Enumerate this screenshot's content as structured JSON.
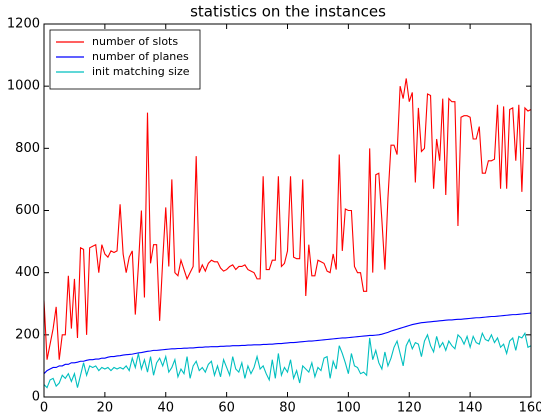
{
  "chart_data": {
    "type": "line",
    "title": "statistics on the instances",
    "x": [
      0,
      1,
      2,
      3,
      4,
      5,
      6,
      7,
      8,
      9,
      10,
      11,
      12,
      13,
      14,
      15,
      16,
      17,
      18,
      19,
      20,
      21,
      22,
      23,
      24,
      25,
      26,
      27,
      28,
      29,
      30,
      31,
      32,
      33,
      34,
      35,
      36,
      37,
      38,
      39,
      40,
      41,
      42,
      43,
      44,
      45,
      46,
      47,
      48,
      49,
      50,
      51,
      52,
      53,
      54,
      55,
      56,
      57,
      58,
      59,
      60,
      61,
      62,
      63,
      64,
      65,
      66,
      67,
      68,
      69,
      70,
      71,
      72,
      73,
      74,
      75,
      76,
      77,
      78,
      79,
      80,
      81,
      82,
      83,
      84,
      85,
      86,
      87,
      88,
      89,
      90,
      91,
      92,
      93,
      94,
      95,
      96,
      97,
      98,
      99,
      100,
      101,
      102,
      103,
      104,
      105,
      106,
      107,
      108,
      109,
      110,
      111,
      112,
      113,
      114,
      115,
      116,
      117,
      118,
      119,
      120,
      121,
      122,
      123,
      124,
      125,
      126,
      127,
      128,
      129,
      130,
      131,
      132,
      133,
      134,
      135,
      136,
      137,
      138,
      139,
      140,
      141,
      142,
      143,
      144,
      145,
      146,
      147,
      148,
      149,
      150,
      151,
      152,
      153,
      154,
      155,
      156,
      157,
      158,
      159,
      160
    ],
    "series": [
      {
        "name": "number of slots",
        "color": "#ff0000",
        "values": [
          310,
          120,
          170,
          220,
          290,
          120,
          200,
          200,
          390,
          220,
          380,
          190,
          480,
          475,
          200,
          480,
          485,
          490,
          400,
          490,
          460,
          450,
          470,
          465,
          470,
          620,
          460,
          400,
          450,
          470,
          265,
          420,
          600,
          320,
          915,
          430,
          490,
          490,
          245,
          440,
          610,
          420,
          700,
          400,
          390,
          440,
          410,
          380,
          400,
          420,
          775,
          400,
          425,
          405,
          430,
          440,
          435,
          435,
          415,
          405,
          410,
          420,
          425,
          410,
          420,
          420,
          425,
          410,
          405,
          400,
          380,
          380,
          710,
          410,
          410,
          440,
          440,
          710,
          420,
          430,
          470,
          710,
          450,
          445,
          445,
          700,
          325,
          490,
          390,
          390,
          440,
          435,
          430,
          405,
          400,
          460,
          410,
          780,
          470,
          605,
          600,
          600,
          420,
          400,
          400,
          340,
          340,
          800,
          400,
          715,
          720,
          570,
          410,
          640,
          810,
          810,
          780,
          1000,
          960,
          1025,
          950,
          980,
          690,
          930,
          790,
          800,
          975,
          970,
          670,
          830,
          760,
          960,
          650,
          960,
          950,
          950,
          550,
          900,
          905,
          905,
          900,
          830,
          830,
          870,
          720,
          720,
          760,
          760,
          765,
          940,
          670,
          935,
          670,
          925,
          930,
          760,
          940,
          660,
          930,
          920,
          925
        ]
      },
      {
        "name": "number of planes",
        "color": "#0000ff",
        "values": [
          75,
          85,
          90,
          95,
          95,
          100,
          100,
          105,
          105,
          110,
          110,
          112,
          115,
          115,
          118,
          120,
          120,
          122,
          122,
          125,
          125,
          128,
          130,
          130,
          132,
          133,
          135,
          136,
          137,
          138,
          140,
          142,
          143,
          145,
          147,
          148,
          150,
          150,
          151,
          152,
          153,
          154,
          155,
          155,
          156,
          156,
          157,
          157,
          158,
          158,
          159,
          160,
          160,
          161,
          161,
          162,
          162,
          162,
          163,
          163,
          164,
          164,
          165,
          165,
          165,
          166,
          166,
          167,
          167,
          168,
          168,
          168,
          169,
          169,
          170,
          170,
          171,
          172,
          172,
          173,
          174,
          175,
          175,
          176,
          177,
          178,
          179,
          180,
          180,
          181,
          182,
          183,
          184,
          185,
          186,
          187,
          188,
          189,
          190,
          190,
          191,
          192,
          193,
          194,
          195,
          196,
          197,
          198,
          198,
          199,
          200,
          202,
          205,
          208,
          212,
          215,
          218,
          221,
          224,
          227,
          230,
          233,
          235,
          237,
          239,
          240,
          241,
          242,
          243,
          244,
          245,
          246,
          247,
          248,
          248,
          249,
          250,
          250,
          251,
          252,
          253,
          254,
          255,
          255,
          256,
          257,
          258,
          259,
          259,
          260,
          261,
          262,
          263,
          264,
          265,
          265,
          266,
          267,
          268,
          269,
          270
        ]
      },
      {
        "name": "init matching size",
        "color": "#00bfbf",
        "values": [
          40,
          30,
          55,
          60,
          35,
          45,
          70,
          60,
          75,
          50,
          75,
          30,
          70,
          110,
          70,
          100,
          95,
          100,
          85,
          95,
          90,
          95,
          85,
          95,
          90,
          95,
          90,
          100,
          85,
          125,
          95,
          140,
          90,
          120,
          80,
          130,
          70,
          110,
          125,
          100,
          130,
          80,
          95,
          120,
          65,
          90,
          75,
          130,
          60,
          100,
          115,
          85,
          95,
          80,
          105,
          115,
          70,
          100,
          65,
          120,
          95,
          70,
          130,
          90,
          80,
          110,
          60,
          100,
          75,
          95,
          130,
          90,
          100,
          75,
          55,
          120,
          60,
          140,
          70,
          95,
          80,
          120,
          60,
          85,
          45,
          100,
          90,
          80,
          110,
          65,
          95,
          85,
          125,
          130,
          60,
          115,
          90,
          165,
          140,
          110,
          75,
          140,
          100,
          95,
          75,
          80,
          70,
          190,
          120,
          150,
          110,
          90,
          145,
          100,
          125,
          160,
          180,
          140,
          100,
          165,
          185,
          155,
          175,
          170,
          130,
          180,
          200,
          165,
          145,
          195,
          160,
          175,
          150,
          180,
          165,
          155,
          200,
          190,
          170,
          195,
          160,
          195,
          175,
          170,
          205,
          185,
          180,
          200,
          175,
          190,
          160,
          170,
          140,
          180,
          190,
          150,
          195,
          190,
          205,
          160,
          165
        ]
      }
    ],
    "xlim": [
      0,
      160
    ],
    "xticks": [
      0,
      20,
      40,
      60,
      80,
      100,
      120,
      140,
      160
    ],
    "ylim": [
      0,
      1200
    ],
    "yticks": [
      0,
      200,
      400,
      600,
      800,
      1000,
      1200
    ],
    "legend": "upper left"
  }
}
